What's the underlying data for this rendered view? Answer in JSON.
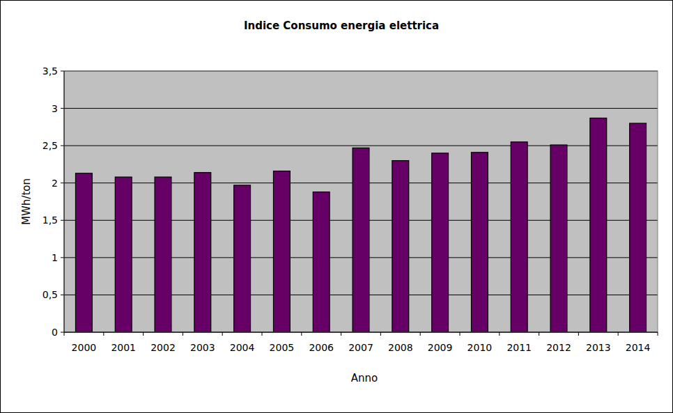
{
  "chart_data": {
    "type": "bar",
    "title": "Indice Consumo energia elettrica",
    "x_label": "Anno",
    "y_label": "MWh/ton",
    "categories": [
      "2000",
      "2001",
      "2002",
      "2003",
      "2004",
      "2005",
      "2006",
      "2007",
      "2008",
      "2009",
      "2010",
      "2011",
      "2012",
      "2013",
      "2014"
    ],
    "values": [
      2.13,
      2.08,
      2.08,
      2.14,
      1.97,
      2.16,
      1.88,
      2.47,
      2.3,
      2.4,
      2.41,
      2.55,
      2.51,
      2.87,
      2.8
    ],
    "color": "#660066",
    "ylim": [
      0,
      3.5
    ],
    "yticks": [
      0,
      {
        "value": 0.5,
        "label": "0,5"
      },
      1,
      {
        "value": 1.5,
        "label": "1,5"
      },
      2,
      {
        "value": 2.5,
        "label": "2,5"
      },
      3,
      {
        "value": 3.5,
        "label": "3,5"
      }
    ],
    "grid": true
  }
}
